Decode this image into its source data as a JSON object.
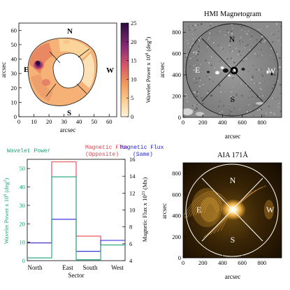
{
  "colors": {
    "wavelet": "#1aa37a",
    "opposite": "#e8404a",
    "same": "#2323d6",
    "heat_low": "#fde6c4",
    "heat_high": "#2a0b3f"
  },
  "chart_data": [
    {
      "type": "heatmap",
      "xlabel": "arcsec",
      "ylabel": "arcsec",
      "xlim": [
        0,
        65
      ],
      "ylim": [
        0,
        65
      ],
      "xticks": [
        "0",
        "10",
        "20",
        "30",
        "40",
        "50",
        "60"
      ],
      "yticks": [
        "0",
        "10",
        "20",
        "30",
        "40",
        "50",
        "60"
      ],
      "sector_labels": {
        "north": "N",
        "east": "E",
        "west": "W",
        "south": "S"
      },
      "colorbar": {
        "label": "Wavelet Power x 10",
        "label_exp": "8",
        "label_units_pre": " (deg",
        "label_units_exp": "2",
        "label_units_post": ")",
        "range": [
          0,
          25
        ],
        "ticks": [
          "0",
          "5",
          "10",
          "15",
          "20",
          "25"
        ]
      }
    },
    {
      "type": "heatmap",
      "title": "HMI Magnetogram",
      "xlabel": "arcsec",
      "ylabel": "arcsec",
      "xlim": [
        0,
        1000
      ],
      "ylim": [
        0,
        900
      ],
      "xticks": [
        "0",
        "200",
        "400",
        "600",
        "800"
      ],
      "yticks": [
        "0",
        "200",
        "400",
        "600",
        "800"
      ],
      "sector_labels": {
        "north": "N",
        "east": "E",
        "west": "W",
        "south": "S"
      }
    },
    {
      "type": "bar",
      "legend": {
        "wavelet": "Wavelet Power",
        "opposite_line1": "Magnetic Flux",
        "opposite_line2": "(Opposite)",
        "same_line1": "Magnetic Flux",
        "same_line2": "(Same)"
      },
      "categories": [
        "North",
        "East",
        "South",
        "West"
      ],
      "xlabel": "Sector",
      "ylabel": "Wavelet Power x 10",
      "ylabel_exp": "8",
      "ylabel_units_pre": " (deg",
      "ylabel_units_exp": "2",
      "ylabel_units_post": ")",
      "ylim": [
        0,
        55
      ],
      "yticks": [
        "0",
        "10",
        "20",
        "30",
        "40",
        "50"
      ],
      "y2label": "Magnetic Flux x 10",
      "y2label_exp": "21",
      "y2label_units": " (Mx)",
      "y2lim": [
        4,
        16
      ],
      "y2ticks": [
        "4",
        "6",
        "8",
        "10",
        "12",
        "14",
        "16"
      ],
      "series": [
        {
          "name": "Wavelet Power",
          "axis": "left",
          "values": [
            1.5,
            45.5,
            0.5,
            8.5
          ]
        },
        {
          "name": "Magnetic Flux (Opposite)",
          "axis": "right",
          "values": [
            6.1,
            15.7,
            6.9,
            6.4
          ]
        },
        {
          "name": "Magnetic Flux (Same)",
          "axis": "right",
          "values": [
            6.1,
            8.9,
            5.1,
            6.4
          ]
        }
      ]
    },
    {
      "type": "heatmap",
      "title": "AIA 171Å",
      "xlabel": "arcsec",
      "ylabel": "arcsec",
      "xlim": [
        0,
        1000
      ],
      "ylim": [
        0,
        900
      ],
      "xticks": [
        "0",
        "200",
        "400",
        "600",
        "800"
      ],
      "yticks": [
        "0",
        "200",
        "400",
        "600",
        "800"
      ],
      "sector_labels": {
        "north": "N",
        "east": "E",
        "west": "W",
        "south": "S"
      }
    }
  ]
}
